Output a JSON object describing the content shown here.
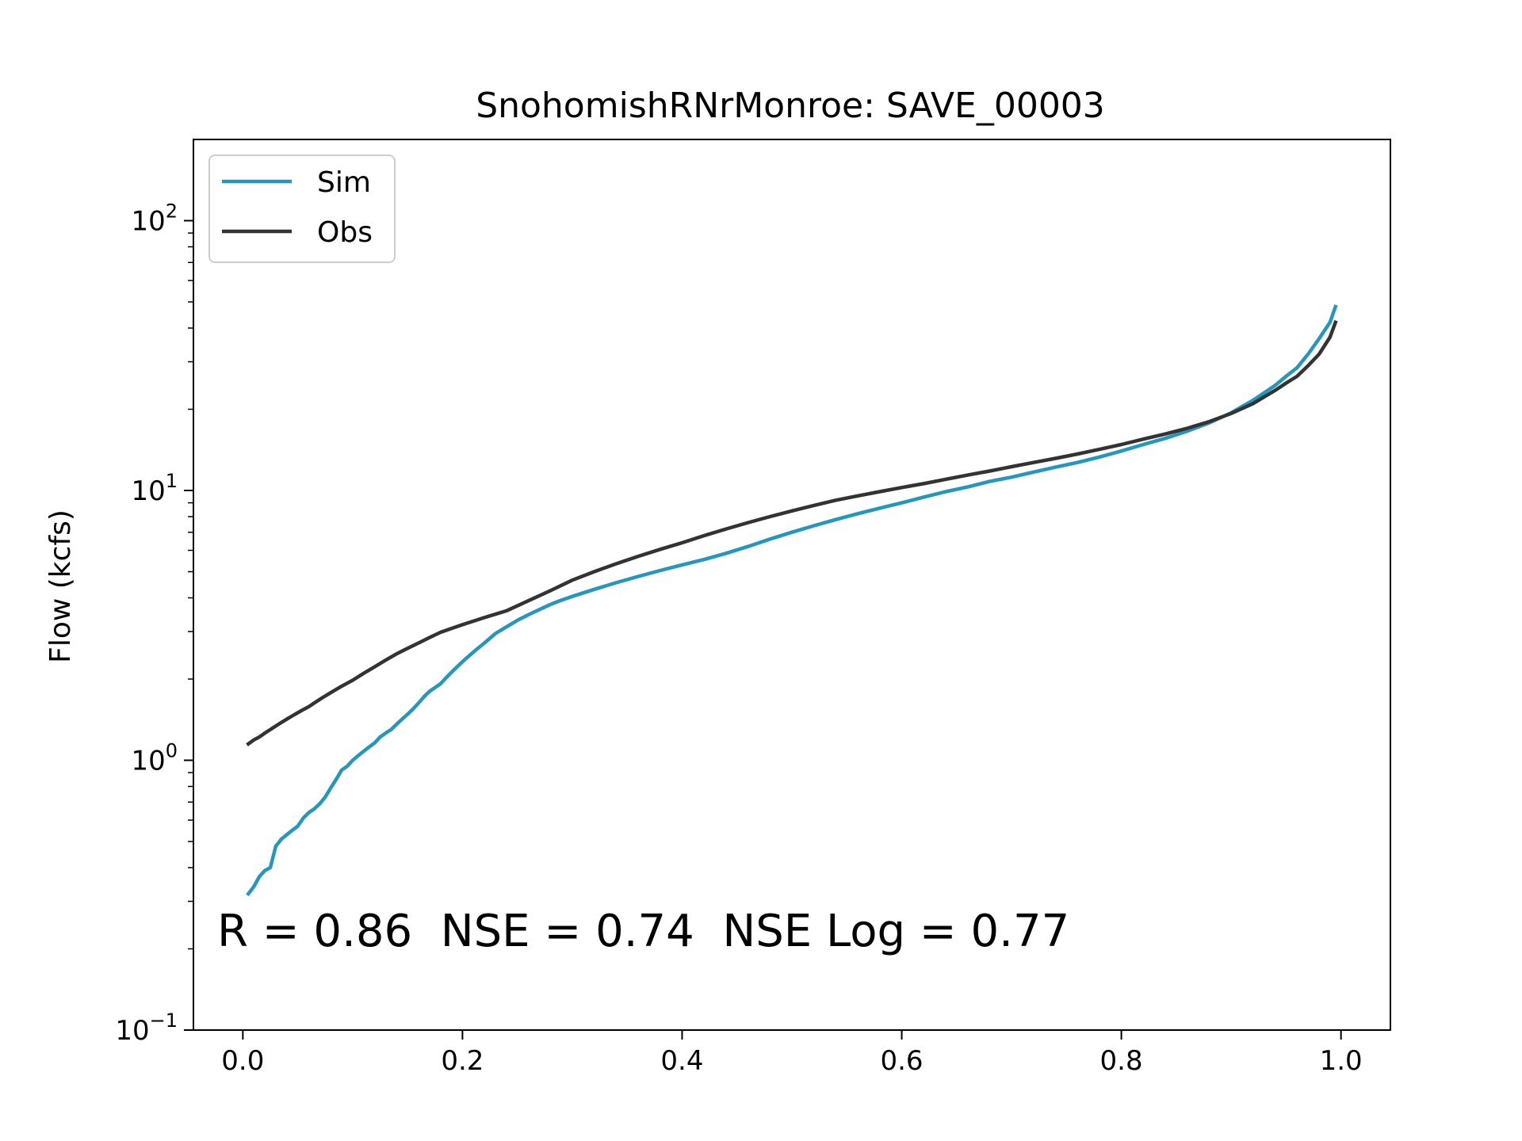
{
  "chart_data": {
    "type": "line",
    "title": "SnohomishRNrMonroe: SAVE_00003",
    "xlabel": "",
    "ylabel": "Flow (kcfs)",
    "yscale": "log",
    "xlim": [
      -0.045,
      1.045
    ],
    "ylim": [
      0.1,
      200
    ],
    "xticks": [
      0.0,
      0.2,
      0.4,
      0.6,
      0.8,
      1.0
    ],
    "xtick_labels": [
      "0.0",
      "0.2",
      "0.4",
      "0.6",
      "0.8",
      "1.0"
    ],
    "yticks": [
      {
        "value": 0.1,
        "base": "10",
        "exp": "−1"
      },
      {
        "value": 1,
        "base": "10",
        "exp": "0"
      },
      {
        "value": 10,
        "base": "10",
        "exp": "1"
      },
      {
        "value": 100,
        "base": "10",
        "exp": "2"
      }
    ],
    "grid": false,
    "legend": "upper-left",
    "annotation": "R = 0.86  NSE = 0.74  NSE Log = 0.77",
    "series": [
      {
        "name": "Sim",
        "color": "#2596be",
        "x": [
          0.005,
          0.01,
          0.015,
          0.02,
          0.025,
          0.03,
          0.035,
          0.04,
          0.045,
          0.05,
          0.055,
          0.06,
          0.065,
          0.07,
          0.075,
          0.08,
          0.085,
          0.09,
          0.095,
          0.1,
          0.105,
          0.11,
          0.115,
          0.12,
          0.125,
          0.13,
          0.135,
          0.14,
          0.145,
          0.15,
          0.155,
          0.16,
          0.165,
          0.17,
          0.175,
          0.18,
          0.185,
          0.19,
          0.195,
          0.2,
          0.21,
          0.22,
          0.23,
          0.24,
          0.25,
          0.26,
          0.27,
          0.28,
          0.29,
          0.3,
          0.32,
          0.34,
          0.36,
          0.38,
          0.4,
          0.42,
          0.44,
          0.46,
          0.48,
          0.5,
          0.52,
          0.54,
          0.56,
          0.58,
          0.6,
          0.62,
          0.64,
          0.66,
          0.68,
          0.7,
          0.72,
          0.74,
          0.76,
          0.78,
          0.8,
          0.82,
          0.84,
          0.86,
          0.88,
          0.9,
          0.92,
          0.94,
          0.95,
          0.96,
          0.97,
          0.98,
          0.99,
          0.995
        ],
        "y": [
          0.32,
          0.34,
          0.37,
          0.39,
          0.4,
          0.48,
          0.51,
          0.53,
          0.55,
          0.57,
          0.61,
          0.64,
          0.66,
          0.69,
          0.73,
          0.79,
          0.85,
          0.92,
          0.95,
          1.0,
          1.04,
          1.08,
          1.12,
          1.16,
          1.22,
          1.26,
          1.3,
          1.36,
          1.42,
          1.48,
          1.55,
          1.63,
          1.72,
          1.8,
          1.86,
          1.92,
          2.02,
          2.12,
          2.22,
          2.32,
          2.52,
          2.72,
          2.95,
          3.12,
          3.3,
          3.46,
          3.62,
          3.78,
          3.92,
          4.05,
          4.3,
          4.55,
          4.8,
          5.05,
          5.3,
          5.55,
          5.85,
          6.2,
          6.6,
          7.0,
          7.4,
          7.8,
          8.2,
          8.6,
          9.0,
          9.45,
          9.9,
          10.3,
          10.8,
          11.2,
          11.7,
          12.2,
          12.7,
          13.3,
          14.0,
          14.8,
          15.6,
          16.6,
          17.8,
          19.4,
          21.6,
          24.5,
          26.5,
          28.5,
          32.0,
          36.5,
          42.0,
          48.0
        ]
      },
      {
        "name": "Obs",
        "color": "#333333",
        "x": [
          0.005,
          0.01,
          0.015,
          0.02,
          0.025,
          0.03,
          0.035,
          0.04,
          0.045,
          0.05,
          0.055,
          0.06,
          0.065,
          0.07,
          0.075,
          0.08,
          0.085,
          0.09,
          0.095,
          0.1,
          0.11,
          0.12,
          0.13,
          0.14,
          0.15,
          0.16,
          0.17,
          0.18,
          0.19,
          0.2,
          0.22,
          0.24,
          0.26,
          0.28,
          0.3,
          0.32,
          0.34,
          0.36,
          0.38,
          0.4,
          0.42,
          0.44,
          0.46,
          0.48,
          0.5,
          0.52,
          0.54,
          0.56,
          0.58,
          0.6,
          0.62,
          0.64,
          0.66,
          0.68,
          0.7,
          0.72,
          0.74,
          0.76,
          0.78,
          0.8,
          0.82,
          0.84,
          0.86,
          0.88,
          0.9,
          0.92,
          0.94,
          0.95,
          0.96,
          0.97,
          0.98,
          0.99,
          0.995
        ],
        "y": [
          1.15,
          1.19,
          1.22,
          1.26,
          1.3,
          1.34,
          1.38,
          1.42,
          1.46,
          1.5,
          1.54,
          1.58,
          1.63,
          1.68,
          1.73,
          1.78,
          1.83,
          1.88,
          1.93,
          1.98,
          2.1,
          2.22,
          2.35,
          2.48,
          2.6,
          2.72,
          2.85,
          2.98,
          3.08,
          3.18,
          3.38,
          3.58,
          3.9,
          4.25,
          4.65,
          5.0,
          5.35,
          5.7,
          6.05,
          6.4,
          6.8,
          7.2,
          7.6,
          8.0,
          8.4,
          8.8,
          9.2,
          9.55,
          9.9,
          10.25,
          10.6,
          11.0,
          11.4,
          11.8,
          12.25,
          12.7,
          13.15,
          13.65,
          14.2,
          14.8,
          15.5,
          16.2,
          17.0,
          18.0,
          19.3,
          21.0,
          23.5,
          25.0,
          26.5,
          29.0,
          32.0,
          37.0,
          42.0
        ]
      }
    ]
  }
}
